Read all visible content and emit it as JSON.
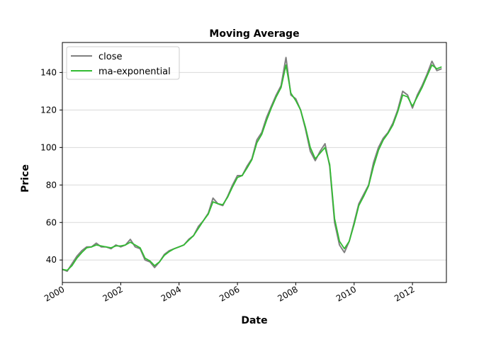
{
  "chart_data": {
    "type": "line",
    "title": "Moving Average",
    "xlabel": "Date",
    "ylabel": "Price",
    "xlim": [
      "2000-01-01",
      "2013-03-01"
    ],
    "ylim": [
      28,
      156
    ],
    "x_ticks": [
      "2000",
      "2002",
      "2004",
      "2006",
      "2008",
      "2010",
      "2012"
    ],
    "y_ticks": [
      40,
      60,
      80,
      100,
      120,
      140
    ],
    "grid": "horizontal",
    "legend_position": "top-left",
    "series": [
      {
        "name": "close",
        "color": "#808080",
        "points": [
          [
            "2000-01-01",
            35
          ],
          [
            "2000-03-01",
            34
          ],
          [
            "2000-05-01",
            38
          ],
          [
            "2000-07-01",
            42
          ],
          [
            "2000-09-01",
            45
          ],
          [
            "2000-11-01",
            47
          ],
          [
            "2001-01-01",
            47
          ],
          [
            "2001-03-01",
            49
          ],
          [
            "2001-05-01",
            47
          ],
          [
            "2001-07-01",
            47
          ],
          [
            "2001-09-01",
            46
          ],
          [
            "2001-11-01",
            48
          ],
          [
            "2002-01-01",
            47
          ],
          [
            "2002-03-01",
            48
          ],
          [
            "2002-05-01",
            51
          ],
          [
            "2002-07-01",
            47
          ],
          [
            "2002-09-01",
            46
          ],
          [
            "2002-11-01",
            40
          ],
          [
            "2003-01-01",
            39
          ],
          [
            "2003-03-01",
            36
          ],
          [
            "2003-05-01",
            39
          ],
          [
            "2003-07-01",
            43
          ],
          [
            "2003-09-01",
            45
          ],
          [
            "2003-11-01",
            46
          ],
          [
            "2004-01-01",
            47
          ],
          [
            "2004-03-01",
            48
          ],
          [
            "2004-05-01",
            51
          ],
          [
            "2004-07-01",
            53
          ],
          [
            "2004-09-01",
            58
          ],
          [
            "2004-11-01",
            61
          ],
          [
            "2005-01-01",
            65
          ],
          [
            "2005-03-01",
            73
          ],
          [
            "2005-05-01",
            70
          ],
          [
            "2005-07-01",
            69
          ],
          [
            "2005-09-01",
            74
          ],
          [
            "2005-11-01",
            80
          ],
          [
            "2006-01-01",
            85
          ],
          [
            "2006-03-01",
            85
          ],
          [
            "2006-05-01",
            90
          ],
          [
            "2006-07-01",
            94
          ],
          [
            "2006-09-01",
            104
          ],
          [
            "2006-11-01",
            108
          ],
          [
            "2007-01-01",
            116
          ],
          [
            "2007-03-01",
            122
          ],
          [
            "2007-05-01",
            128
          ],
          [
            "2007-07-01",
            133
          ],
          [
            "2007-09-01",
            148
          ],
          [
            "2007-11-01",
            128
          ],
          [
            "2008-01-01",
            126
          ],
          [
            "2008-03-01",
            120
          ],
          [
            "2008-05-01",
            110
          ],
          [
            "2008-07-01",
            98
          ],
          [
            "2008-09-01",
            93
          ],
          [
            "2008-11-01",
            98
          ],
          [
            "2009-01-01",
            102
          ],
          [
            "2009-03-01",
            90
          ],
          [
            "2009-05-01",
            60
          ],
          [
            "2009-07-01",
            48
          ],
          [
            "2009-09-01",
            44
          ],
          [
            "2009-11-01",
            50
          ],
          [
            "2010-01-01",
            60
          ],
          [
            "2010-03-01",
            70
          ],
          [
            "2010-05-01",
            75
          ],
          [
            "2010-07-01",
            80
          ],
          [
            "2010-09-01",
            92
          ],
          [
            "2010-11-01",
            100
          ],
          [
            "2011-01-01",
            105
          ],
          [
            "2011-03-01",
            108
          ],
          [
            "2011-05-01",
            113
          ],
          [
            "2011-07-01",
            120
          ],
          [
            "2011-09-01",
            130
          ],
          [
            "2011-11-01",
            128
          ],
          [
            "2012-01-01",
            121
          ],
          [
            "2012-03-01",
            128
          ],
          [
            "2012-05-01",
            133
          ],
          [
            "2012-07-01",
            139
          ],
          [
            "2012-09-01",
            146
          ],
          [
            "2012-11-01",
            141
          ],
          [
            "2013-01-01",
            142
          ]
        ]
      },
      {
        "name": "ma-exponential",
        "color": "#33bb33",
        "points": [
          [
            "2000-01-01",
            35
          ],
          [
            "2000-03-01",
            34.5
          ],
          [
            "2000-05-01",
            37
          ],
          [
            "2000-07-01",
            41
          ],
          [
            "2000-09-01",
            44
          ],
          [
            "2000-11-01",
            46.5
          ],
          [
            "2001-01-01",
            47
          ],
          [
            "2001-03-01",
            48
          ],
          [
            "2001-05-01",
            47.5
          ],
          [
            "2001-07-01",
            47
          ],
          [
            "2001-09-01",
            46.5
          ],
          [
            "2001-11-01",
            47.5
          ],
          [
            "2002-01-01",
            47.5
          ],
          [
            "2002-03-01",
            48
          ],
          [
            "2002-05-01",
            49.5
          ],
          [
            "2002-07-01",
            48
          ],
          [
            "2002-09-01",
            46.5
          ],
          [
            "2002-11-01",
            41
          ],
          [
            "2003-01-01",
            39.5
          ],
          [
            "2003-03-01",
            37
          ],
          [
            "2003-05-01",
            39
          ],
          [
            "2003-07-01",
            42.5
          ],
          [
            "2003-09-01",
            44.5
          ],
          [
            "2003-11-01",
            46
          ],
          [
            "2004-01-01",
            47
          ],
          [
            "2004-03-01",
            48
          ],
          [
            "2004-05-01",
            50.5
          ],
          [
            "2004-07-01",
            53
          ],
          [
            "2004-09-01",
            57
          ],
          [
            "2004-11-01",
            61
          ],
          [
            "2005-01-01",
            64.5
          ],
          [
            "2005-03-01",
            71
          ],
          [
            "2005-05-01",
            70
          ],
          [
            "2005-07-01",
            69.5
          ],
          [
            "2005-09-01",
            73.5
          ],
          [
            "2005-11-01",
            79
          ],
          [
            "2006-01-01",
            84
          ],
          [
            "2006-03-01",
            85
          ],
          [
            "2006-05-01",
            89
          ],
          [
            "2006-07-01",
            93.5
          ],
          [
            "2006-09-01",
            102.5
          ],
          [
            "2006-11-01",
            107
          ],
          [
            "2007-01-01",
            114.5
          ],
          [
            "2007-03-01",
            121
          ],
          [
            "2007-05-01",
            127
          ],
          [
            "2007-07-01",
            132
          ],
          [
            "2007-09-01",
            144
          ],
          [
            "2007-11-01",
            129
          ],
          [
            "2008-01-01",
            125
          ],
          [
            "2008-03-01",
            120
          ],
          [
            "2008-05-01",
            111
          ],
          [
            "2008-07-01",
            100
          ],
          [
            "2008-09-01",
            94
          ],
          [
            "2008-11-01",
            97
          ],
          [
            "2009-01-01",
            100
          ],
          [
            "2009-03-01",
            91
          ],
          [
            "2009-05-01",
            62
          ],
          [
            "2009-07-01",
            50
          ],
          [
            "2009-09-01",
            46
          ],
          [
            "2009-11-01",
            50
          ],
          [
            "2010-01-01",
            59
          ],
          [
            "2010-03-01",
            69
          ],
          [
            "2010-05-01",
            74
          ],
          [
            "2010-07-01",
            79.5
          ],
          [
            "2010-09-01",
            90
          ],
          [
            "2010-11-01",
            98.5
          ],
          [
            "2011-01-01",
            104
          ],
          [
            "2011-03-01",
            107.5
          ],
          [
            "2011-05-01",
            112
          ],
          [
            "2011-07-01",
            119
          ],
          [
            "2011-09-01",
            128
          ],
          [
            "2011-11-01",
            127
          ],
          [
            "2012-01-01",
            122
          ],
          [
            "2012-03-01",
            127
          ],
          [
            "2012-05-01",
            132
          ],
          [
            "2012-07-01",
            138
          ],
          [
            "2012-09-01",
            144
          ],
          [
            "2012-11-01",
            142
          ],
          [
            "2013-01-01",
            143
          ]
        ]
      }
    ]
  }
}
